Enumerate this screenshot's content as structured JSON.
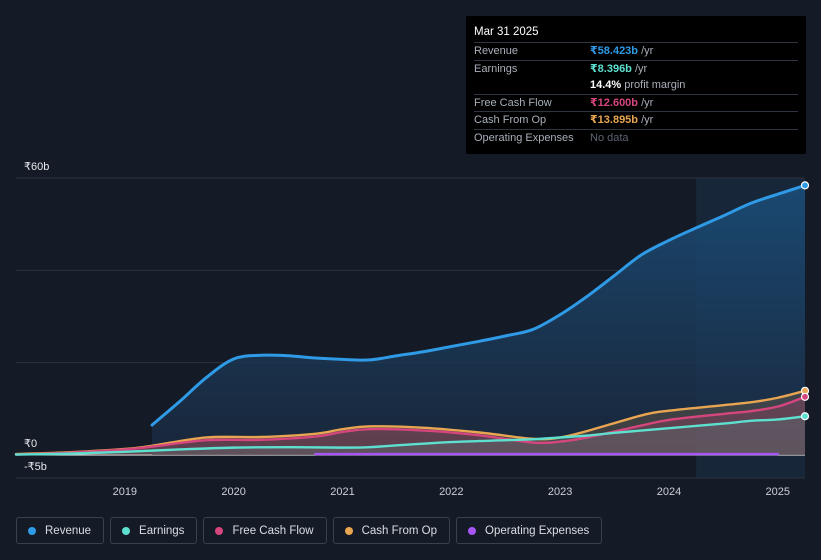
{
  "tooltip": {
    "date": "Mar 31 2025",
    "rows": {
      "revenue": {
        "label": "Revenue",
        "value": "₹58.423b",
        "unit": " /yr",
        "color": "#2f9ae6"
      },
      "earnings": {
        "label": "Earnings",
        "value": "₹8.396b",
        "unit": " /yr",
        "color": "#5ee0d0"
      },
      "margin": {
        "value": "14.4%",
        "unit": " profit margin"
      },
      "fcf": {
        "label": "Free Cash Flow",
        "value": "₹12.600b",
        "unit": " /yr",
        "color": "#d6467e"
      },
      "cfo": {
        "label": "Cash From Op",
        "value": "₹13.895b",
        "unit": " /yr",
        "color": "#e8a552"
      },
      "opex": {
        "label": "Operating Expenses",
        "value": "No data"
      }
    }
  },
  "legend": [
    {
      "key": "revenue",
      "label": "Revenue",
      "color": "#2f9ae6"
    },
    {
      "key": "earnings",
      "label": "Earnings",
      "color": "#5ee0d0"
    },
    {
      "key": "fcf",
      "label": "Free Cash Flow",
      "color": "#d6467e"
    },
    {
      "key": "cfo",
      "label": "Cash From Op",
      "color": "#e8a552"
    },
    {
      "key": "opex",
      "label": "Operating Expenses",
      "color": "#a855f7"
    }
  ],
  "chart_data": {
    "type": "line",
    "title": "",
    "xlabel": "",
    "ylabel": "",
    "unit": "₹ billions",
    "xlim": [
      2018.0,
      2025.25
    ],
    "ylim": [
      -5,
      60
    ],
    "y_tick_labels": [
      {
        "value": 60,
        "label": "₹60b"
      },
      {
        "value": 0,
        "label": "₹0"
      },
      {
        "value": -5,
        "label": "-₹5b"
      }
    ],
    "x_tick_labels": [
      {
        "value": 2019,
        "label": "2019"
      },
      {
        "value": 2020,
        "label": "2020"
      },
      {
        "value": 2021,
        "label": "2021"
      },
      {
        "value": 2022,
        "label": "2022"
      },
      {
        "value": 2023,
        "label": "2023"
      },
      {
        "value": 2024,
        "label": "2024"
      },
      {
        "value": 2025,
        "label": "2025"
      }
    ],
    "highlight_from": 2024.25,
    "series": [
      {
        "name": "Revenue",
        "key": "revenue",
        "color": "#2f9ae6",
        "points": [
          [
            2019.25,
            6.5
          ],
          [
            2019.5,
            11.5
          ],
          [
            2019.75,
            16.8
          ],
          [
            2020.0,
            20.8
          ],
          [
            2020.25,
            21.6
          ],
          [
            2020.5,
            21.5
          ],
          [
            2020.75,
            21.0
          ],
          [
            2021.0,
            20.7
          ],
          [
            2021.25,
            20.6
          ],
          [
            2021.5,
            21.5
          ],
          [
            2021.75,
            22.4
          ],
          [
            2022.0,
            23.5
          ],
          [
            2022.25,
            24.6
          ],
          [
            2022.5,
            25.8
          ],
          [
            2022.75,
            27.2
          ],
          [
            2023.0,
            30.4
          ],
          [
            2023.25,
            34.4
          ],
          [
            2023.5,
            38.9
          ],
          [
            2023.75,
            43.4
          ],
          [
            2024.0,
            46.5
          ],
          [
            2024.25,
            49.2
          ],
          [
            2024.5,
            51.8
          ],
          [
            2024.75,
            54.5
          ],
          [
            2025.0,
            56.5
          ],
          [
            2025.25,
            58.4
          ]
        ]
      },
      {
        "name": "Earnings",
        "key": "earnings",
        "color": "#5ee0d0",
        "points": [
          [
            2018.0,
            0.1
          ],
          [
            2018.5,
            0.3
          ],
          [
            2019.0,
            0.7
          ],
          [
            2019.5,
            1.2
          ],
          [
            2020.0,
            1.6
          ],
          [
            2020.5,
            1.7
          ],
          [
            2021.0,
            1.6
          ],
          [
            2021.25,
            1.7
          ],
          [
            2021.5,
            2.1
          ],
          [
            2022.0,
            2.8
          ],
          [
            2022.5,
            3.2
          ],
          [
            2022.75,
            3.4
          ],
          [
            2023.0,
            3.8
          ],
          [
            2023.25,
            4.2
          ],
          [
            2023.5,
            4.8
          ],
          [
            2024.0,
            5.8
          ],
          [
            2024.5,
            6.8
          ],
          [
            2024.75,
            7.4
          ],
          [
            2025.0,
            7.7
          ],
          [
            2025.25,
            8.4
          ]
        ]
      },
      {
        "name": "Free Cash Flow",
        "key": "fcf",
        "color": "#d6467e",
        "points": [
          [
            2018.0,
            0.1
          ],
          [
            2018.5,
            0.5
          ],
          [
            2019.0,
            1.2
          ],
          [
            2019.25,
            1.8
          ],
          [
            2019.75,
            3.2
          ],
          [
            2020.25,
            3.3
          ],
          [
            2020.75,
            4.0
          ],
          [
            2021.0,
            5.0
          ],
          [
            2021.25,
            5.6
          ],
          [
            2021.75,
            5.3
          ],
          [
            2022.25,
            4.3
          ],
          [
            2022.75,
            2.7
          ],
          [
            2023.0,
            2.9
          ],
          [
            2023.25,
            3.8
          ],
          [
            2023.75,
            6.4
          ],
          [
            2024.0,
            7.6
          ],
          [
            2024.5,
            8.9
          ],
          [
            2024.75,
            9.5
          ],
          [
            2025.0,
            10.5
          ],
          [
            2025.25,
            12.6
          ]
        ]
      },
      {
        "name": "Cash From Op",
        "key": "cfo",
        "color": "#e8a552",
        "points": [
          [
            2018.0,
            0.2
          ],
          [
            2018.5,
            0.6
          ],
          [
            2019.0,
            1.3
          ],
          [
            2019.25,
            2.0
          ],
          [
            2019.75,
            3.8
          ],
          [
            2020.25,
            3.9
          ],
          [
            2020.75,
            4.6
          ],
          [
            2021.0,
            5.6
          ],
          [
            2021.25,
            6.2
          ],
          [
            2021.75,
            5.9
          ],
          [
            2022.25,
            4.9
          ],
          [
            2022.75,
            3.5
          ],
          [
            2023.0,
            3.8
          ],
          [
            2023.25,
            5.2
          ],
          [
            2023.75,
            8.6
          ],
          [
            2024.0,
            9.6
          ],
          [
            2024.5,
            10.8
          ],
          [
            2024.75,
            11.4
          ],
          [
            2025.0,
            12.4
          ],
          [
            2025.25,
            13.9
          ]
        ]
      },
      {
        "name": "Operating Expenses",
        "key": "opex",
        "color": "#a855f7",
        "points": [
          [
            2020.75,
            0.2
          ],
          [
            2025.0,
            0.2
          ]
        ]
      }
    ]
  }
}
